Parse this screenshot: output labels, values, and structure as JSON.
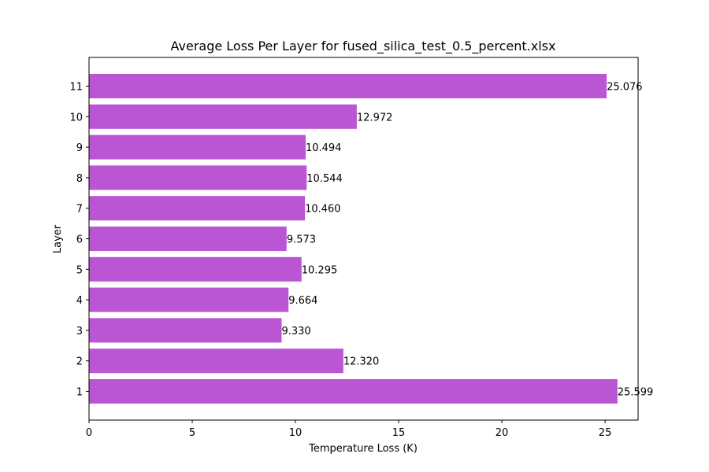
{
  "chart_data": {
    "type": "bar",
    "orientation": "horizontal",
    "title": "Average Loss Per Layer for fused_silica_test_0.5_percent.xlsx",
    "xlabel": "Temperature Loss (K)",
    "ylabel": "Layer",
    "categories": [
      "1",
      "2",
      "3",
      "4",
      "5",
      "6",
      "7",
      "8",
      "9",
      "10",
      "11"
    ],
    "values": [
      25.599,
      12.32,
      9.33,
      9.664,
      10.295,
      9.573,
      10.46,
      10.544,
      10.494,
      12.972,
      25.076
    ],
    "data_labels": [
      "25.599",
      "12.320",
      "9.330",
      "9.664",
      "10.295",
      "9.573",
      "10.460",
      "10.544",
      "10.494",
      "12.972",
      "25.076"
    ],
    "xlim": [
      0,
      26.6
    ],
    "xticks": [
      0,
      5,
      10,
      15,
      20,
      25
    ],
    "xtick_labels": [
      "0",
      "5",
      "10",
      "15",
      "20",
      "25"
    ],
    "bar_color": "#ba55d3",
    "grid": false,
    "legend": "none"
  }
}
